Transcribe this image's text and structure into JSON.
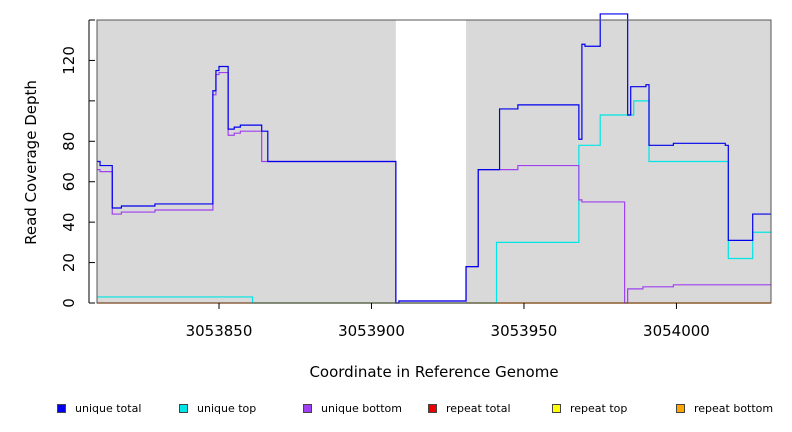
{
  "chart_data": {
    "type": "line",
    "xlabel": "Coordinate in Reference Genome",
    "ylabel": "Read Coverage Depth",
    "xlim": [
      3053810,
      3054031
    ],
    "ylim": [
      0,
      140
    ],
    "x_ticks": [
      3053850,
      3053900,
      3053950,
      3054000
    ],
    "x_tick_labels": [
      "3053850",
      "3053900",
      "3053950",
      "3054000"
    ],
    "y_ticks": [
      0,
      20,
      40,
      60,
      80,
      120
    ],
    "y_tick_labels": [
      "0",
      "20",
      "40",
      "60",
      "80",
      "120"
    ],
    "y_tick_marks": [
      0,
      20,
      40,
      60,
      80,
      100,
      120,
      140
    ],
    "shaded_regions": [
      [
        3053810,
        3053908
      ],
      [
        3053931,
        3054031
      ]
    ],
    "colors": {
      "panel": "#d9d9d9",
      "unique_total": "#0000ee",
      "unique_top": "#00e5e5",
      "unique_bottom": "#a040f0",
      "repeat_total": "#ee0000",
      "repeat_top": "#ffff00",
      "repeat_bottom": "#ffa500"
    },
    "series": [
      {
        "name": "unique total",
        "color": "#0000ee",
        "points": [
          [
            3053810,
            70
          ],
          [
            3053811,
            70
          ],
          [
            3053811,
            68
          ],
          [
            3053815,
            68
          ],
          [
            3053815,
            47
          ],
          [
            3053818,
            47
          ],
          [
            3053818,
            48
          ],
          [
            3053829,
            48
          ],
          [
            3053829,
            49
          ],
          [
            3053848,
            49
          ],
          [
            3053848,
            105
          ],
          [
            3053849,
            105
          ],
          [
            3053849,
            115
          ],
          [
            3053850,
            115
          ],
          [
            3053850,
            117
          ],
          [
            3053853,
            117
          ],
          [
            3053853,
            86
          ],
          [
            3053855,
            86
          ],
          [
            3053855,
            87
          ],
          [
            3053857,
            87
          ],
          [
            3053857,
            88
          ],
          [
            3053864,
            88
          ],
          [
            3053864,
            85
          ],
          [
            3053866,
            85
          ],
          [
            3053866,
            70
          ],
          [
            3053908,
            70
          ],
          [
            3053908,
            0
          ],
          [
            3053909,
            0
          ],
          [
            3053909,
            1
          ],
          [
            3053931,
            1
          ],
          [
            3053931,
            18
          ],
          [
            3053935,
            18
          ],
          [
            3053935,
            66
          ],
          [
            3053942,
            66
          ],
          [
            3053942,
            96
          ],
          [
            3053948,
            96
          ],
          [
            3053948,
            98
          ],
          [
            3053968,
            98
          ],
          [
            3053968,
            81
          ],
          [
            3053969,
            81
          ],
          [
            3053969,
            128
          ],
          [
            3053970,
            128
          ],
          [
            3053970,
            127
          ],
          [
            3053975,
            127
          ],
          [
            3053975,
            143
          ],
          [
            3053984,
            143
          ],
          [
            3053984,
            93
          ],
          [
            3053985,
            93
          ],
          [
            3053985,
            107
          ],
          [
            3053990,
            107
          ],
          [
            3053990,
            108
          ],
          [
            3053991,
            108
          ],
          [
            3053991,
            78
          ],
          [
            3053999,
            78
          ],
          [
            3053999,
            79
          ],
          [
            3054016,
            79
          ],
          [
            3054016,
            78
          ],
          [
            3054017,
            78
          ],
          [
            3054017,
            31
          ],
          [
            3054025,
            31
          ],
          [
            3054025,
            44
          ],
          [
            3054031,
            44
          ]
        ]
      },
      {
        "name": "unique top",
        "color": "#00e5e5",
        "points": [
          [
            3053810,
            3
          ],
          [
            3053861,
            3
          ],
          [
            3053861,
            0
          ],
          [
            3053941,
            0
          ],
          [
            3053941,
            30
          ],
          [
            3053968,
            30
          ],
          [
            3053968,
            78
          ],
          [
            3053975,
            78
          ],
          [
            3053975,
            93
          ],
          [
            3053986,
            93
          ],
          [
            3053986,
            100
          ],
          [
            3053991,
            100
          ],
          [
            3053991,
            70
          ],
          [
            3054017,
            70
          ],
          [
            3054017,
            22
          ],
          [
            3054025,
            22
          ],
          [
            3054025,
            35
          ],
          [
            3054031,
            35
          ]
        ]
      },
      {
        "name": "unique bottom",
        "color": "#a040f0",
        "points": [
          [
            3053810,
            66
          ],
          [
            3053811,
            66
          ],
          [
            3053811,
            65
          ],
          [
            3053815,
            65
          ],
          [
            3053815,
            44
          ],
          [
            3053818,
            44
          ],
          [
            3053818,
            45
          ],
          [
            3053829,
            45
          ],
          [
            3053829,
            46
          ],
          [
            3053848,
            46
          ],
          [
            3053848,
            103
          ],
          [
            3053849,
            103
          ],
          [
            3053849,
            113
          ],
          [
            3053850,
            113
          ],
          [
            3053850,
            114
          ],
          [
            3053853,
            114
          ],
          [
            3053853,
            83
          ],
          [
            3053855,
            83
          ],
          [
            3053855,
            84
          ],
          [
            3053857,
            84
          ],
          [
            3053857,
            85
          ],
          [
            3053864,
            85
          ],
          [
            3053864,
            70
          ],
          [
            3053908,
            70
          ],
          [
            3053908,
            0
          ],
          [
            3053909,
            0
          ],
          [
            3053909,
            1
          ],
          [
            3053931,
            1
          ],
          [
            3053931,
            18
          ],
          [
            3053935,
            18
          ],
          [
            3053935,
            66
          ],
          [
            3053948,
            66
          ],
          [
            3053948,
            68
          ],
          [
            3053968,
            68
          ],
          [
            3053968,
            51
          ],
          [
            3053969,
            51
          ],
          [
            3053969,
            50
          ],
          [
            3053983,
            50
          ],
          [
            3053983,
            0
          ],
          [
            3053984,
            0
          ],
          [
            3053984,
            7
          ],
          [
            3053989,
            7
          ],
          [
            3053989,
            8
          ],
          [
            3053999,
            8
          ],
          [
            3053999,
            9
          ],
          [
            3054031,
            9
          ]
        ]
      },
      {
        "name": "repeat total",
        "color": "#ee0000",
        "points": [
          [
            3053810,
            0
          ],
          [
            3054031,
            0
          ]
        ]
      },
      {
        "name": "repeat top",
        "color": "#ffff00",
        "points": [
          [
            3053810,
            0
          ],
          [
            3054031,
            0
          ]
        ]
      },
      {
        "name": "repeat bottom",
        "color": "#ffa500",
        "points": [
          [
            3053931,
            0
          ],
          [
            3054031,
            0
          ]
        ]
      }
    ],
    "legend": [
      {
        "label": "unique total",
        "color": "#0000ee"
      },
      {
        "label": "unique top",
        "color": "#00e5e5"
      },
      {
        "label": "unique bottom",
        "color": "#a040f0"
      },
      {
        "label": "repeat total",
        "color": "#ee0000"
      },
      {
        "label": "repeat top",
        "color": "#ffff00"
      },
      {
        "label": "repeat bottom",
        "color": "#ffa500"
      }
    ]
  }
}
